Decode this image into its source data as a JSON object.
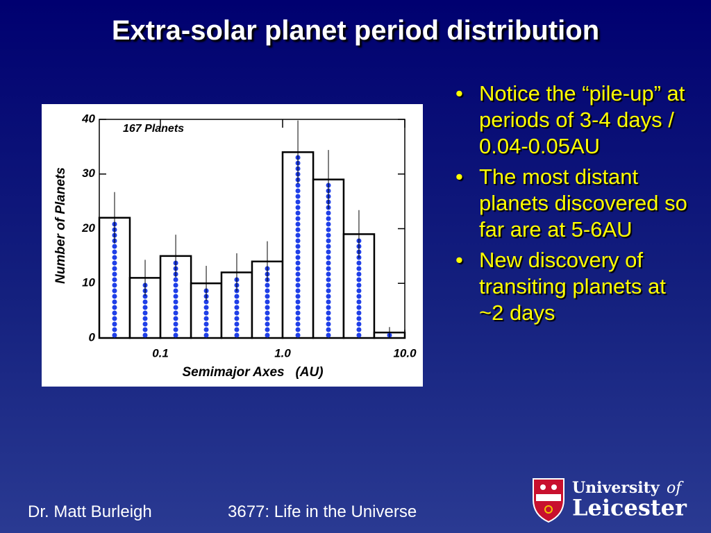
{
  "title": "Extra-solar planet period distribution",
  "bullets": [
    "Notice the “pile-up” at periods of 3-4 days / 0.04-0.05AU",
    "The most distant planets discovered so far are at 5-6AU",
    "New discovery of transiting planets at ~2 days"
  ],
  "footer": {
    "author": "Dr. Matt Burleigh",
    "course": "3677: Life in the Universe"
  },
  "logo": {
    "line1": "University",
    "line1b": "of",
    "line2": "Leicester"
  },
  "chart_data": {
    "type": "histogram",
    "annotation": "167 Planets",
    "x_label": "Semimajor Axes   (AU)",
    "y_label": "Number of Planets",
    "x_log": true,
    "bins": [
      0.0316,
      0.0562,
      0.1,
      0.178,
      0.316,
      0.562,
      1,
      1.78,
      3.16,
      5.62,
      10
    ],
    "values": [
      22,
      11,
      15,
      10,
      12,
      14,
      34,
      29,
      19,
      1
    ],
    "errors": [
      4.7,
      3.3,
      3.9,
      3.2,
      3.5,
      3.7,
      5.8,
      5.4,
      4.4,
      1.0
    ],
    "color": "#1f3fe8",
    "xlim": [
      0.0316,
      10
    ],
    "xticks": [
      0.1,
      {
        "value": 1,
        "label": "1.0"
      },
      {
        "value": 10,
        "label": "10.0"
      }
    ],
    "ylim": [
      0,
      40
    ],
    "yticks": [
      0,
      10,
      20,
      30,
      40
    ]
  }
}
